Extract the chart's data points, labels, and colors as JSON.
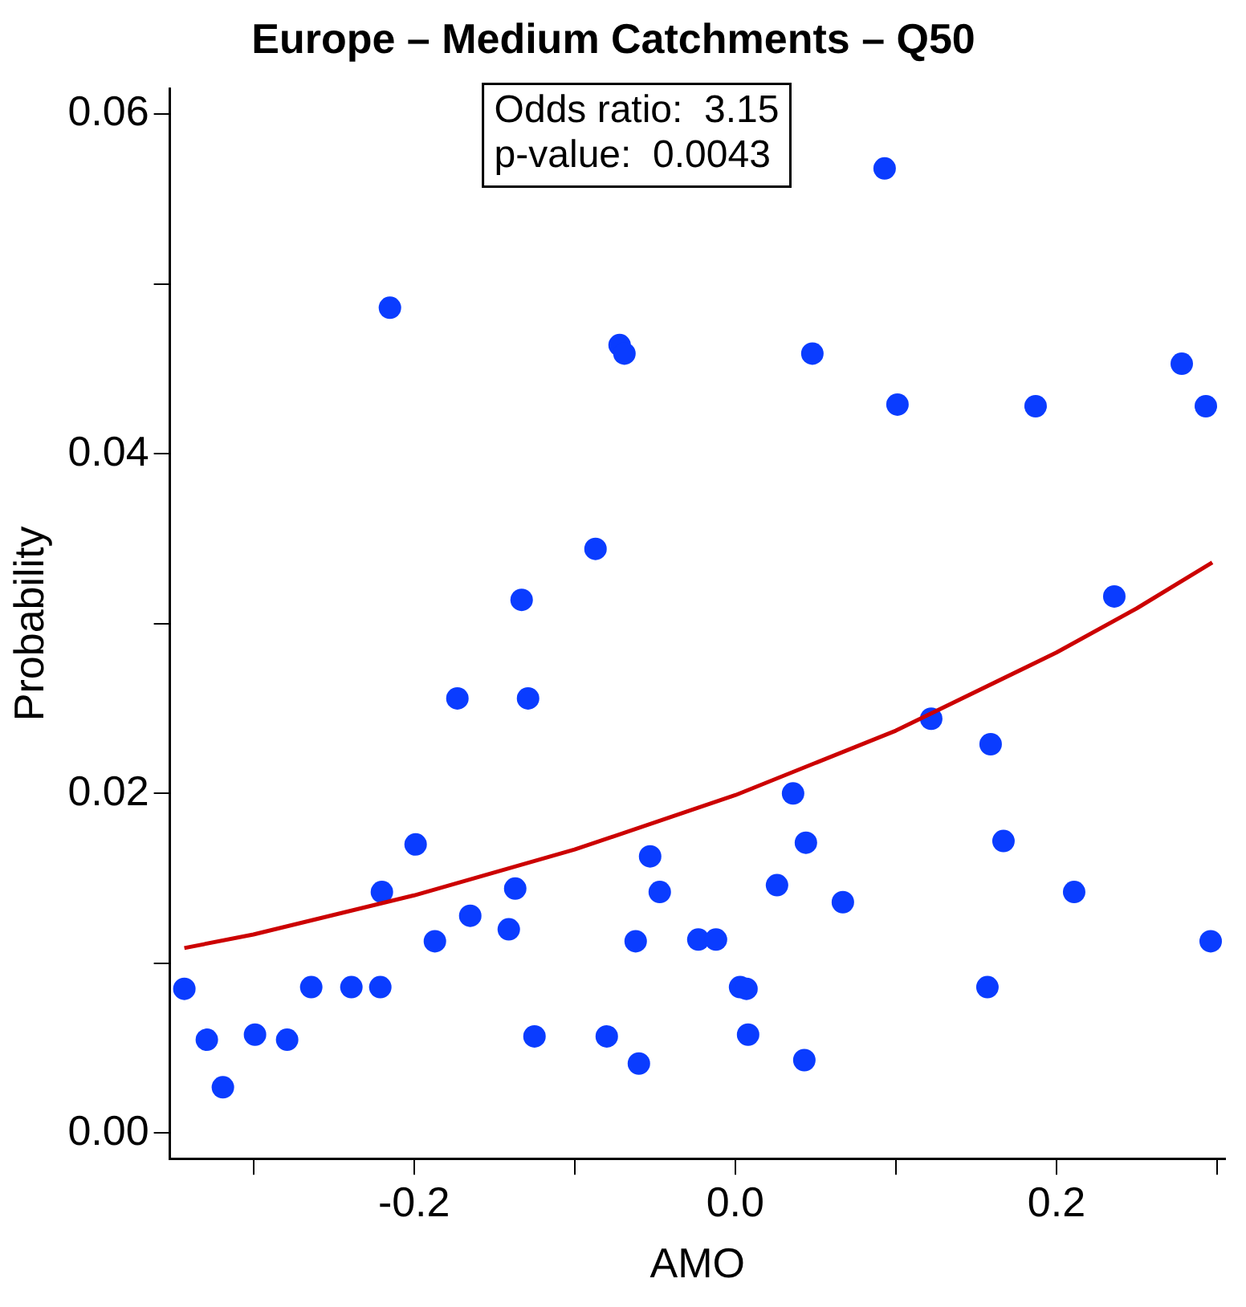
{
  "chart_data": {
    "type": "scatter",
    "title": "Europe – Medium Catchments – Q50",
    "xlabel": "AMO",
    "ylabel": "Probability",
    "xlim": [
      -0.352,
      0.305
    ],
    "xticks": [
      {
        "value": -0.3,
        "label": null
      },
      {
        "value": -0.2,
        "label": "-0.2"
      },
      {
        "value": -0.1,
        "label": null
      },
      {
        "value": 0.0,
        "label": "0.0"
      },
      {
        "value": 0.1,
        "label": null
      },
      {
        "value": 0.2,
        "label": "0.2"
      },
      {
        "value": 0.3,
        "label": null
      }
    ],
    "ylim": [
      -0.0015,
      0.0615
    ],
    "yticks": [
      {
        "value": 0,
        "label": "0.00"
      },
      {
        "value": 0.01,
        "label": null
      },
      {
        "value": 0.02,
        "label": "0.02"
      },
      {
        "value": 0.03,
        "label": null
      },
      {
        "value": 0.04,
        "label": "0.04"
      },
      {
        "value": 0.05,
        "label": null
      },
      {
        "value": 0.06,
        "label": "0.06"
      }
    ],
    "grid": false,
    "legend": false,
    "marker": "circle",
    "annotations": [
      "Odds ratio:  3.15",
      "p-value:  0.0043"
    ],
    "series": [
      {
        "type": "scatter",
        "color": "#0a3cff",
        "x": [
          -0.343,
          -0.329,
          -0.319,
          -0.299,
          -0.279,
          -0.264,
          -0.239,
          -0.221,
          -0.22,
          -0.215,
          -0.199,
          -0.187,
          -0.173,
          -0.165,
          -0.141,
          -0.137,
          -0.133,
          -0.129,
          -0.125,
          -0.087,
          -0.08,
          -0.072,
          -0.069,
          -0.062,
          -0.06,
          -0.053,
          -0.047,
          -0.023,
          -0.012,
          0.003,
          0.007,
          0.008,
          0.026,
          0.036,
          0.043,
          0.044,
          0.048,
          0.067,
          0.093,
          0.101,
          0.122,
          0.157,
          0.159,
          0.167,
          0.187,
          0.211,
          0.236,
          0.278,
          0.293,
          0.296
        ],
        "values": [
          0.0085,
          0.0055,
          0.0027,
          0.0058,
          0.0055,
          0.0086,
          0.0086,
          0.0086,
          0.0142,
          0.0486,
          0.017,
          0.0113,
          0.0256,
          0.0128,
          0.012,
          0.0144,
          0.0314,
          0.0256,
          0.0057,
          0.0344,
          0.0057,
          0.0464,
          0.0459,
          0.0113,
          0.0041,
          0.0163,
          0.0142,
          0.0114,
          0.0114,
          0.0086,
          0.0085,
          0.0058,
          0.0146,
          0.02,
          0.0043,
          0.0171,
          0.0459,
          0.0136,
          0.0568,
          0.0429,
          0.0244,
          0.0086,
          0.0229,
          0.0172,
          0.0428,
          0.0142,
          0.0316,
          0.0453,
          0.0428,
          0.0113
        ]
      },
      {
        "type": "line",
        "color": "#cc0000",
        "marker": "none",
        "line_style": "solid",
        "x": [
          -0.343,
          -0.3,
          -0.2,
          -0.1,
          0.0,
          0.1,
          0.2,
          0.25,
          0.297
        ],
        "values": [
          0.0109,
          0.0117,
          0.014,
          0.0167,
          0.0199,
          0.0237,
          0.0283,
          0.0309,
          0.0336
        ]
      }
    ]
  }
}
